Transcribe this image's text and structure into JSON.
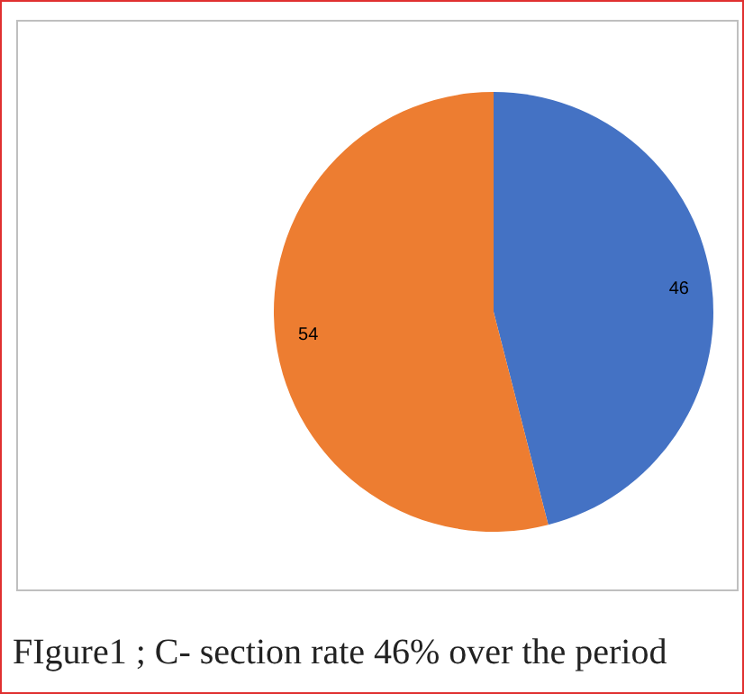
{
  "chart_data": {
    "type": "pie",
    "categories": [
      null,
      null
    ],
    "values": [
      46,
      54
    ],
    "colors": [
      "#4472c4",
      "#ed7d31"
    ],
    "data_labels": true,
    "legend": false,
    "annotations": [
      "FIgure1 ; C- section rate 46% over the period"
    ]
  }
}
